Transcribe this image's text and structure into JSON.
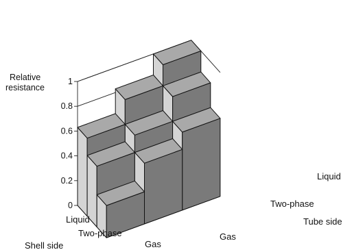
{
  "chart_data": {
    "type": "bar",
    "variant": "3d-bar-grid",
    "title": "",
    "ylabel": "Relative resistance",
    "ylim": [
      0,
      1
    ],
    "yticks": [
      0,
      0.2,
      0.4,
      0.6,
      0.8,
      1
    ],
    "ytick_labels": [
      "0",
      "0.2",
      "0.4",
      "0.6",
      "0.8",
      "1"
    ],
    "shell_side_label": "Shell side",
    "tube_side_label": "Tube side",
    "shell_side_categories": [
      "Liquid",
      "Two-phase",
      "Gas"
    ],
    "tube_side_categories": [
      "Gas",
      "Two-phase",
      "Liquid"
    ],
    "grid": true,
    "values": [
      [
        0.63,
        0.83,
        1.0
      ],
      [
        0.49,
        0.63,
        0.83
      ],
      [
        0.26,
        0.49,
        0.63
      ]
    ],
    "colors": {
      "front_face": "#d4d4d4",
      "side_face": "#7a7a7a",
      "top_face": "#a9a9a9",
      "edge": "#111111"
    }
  }
}
